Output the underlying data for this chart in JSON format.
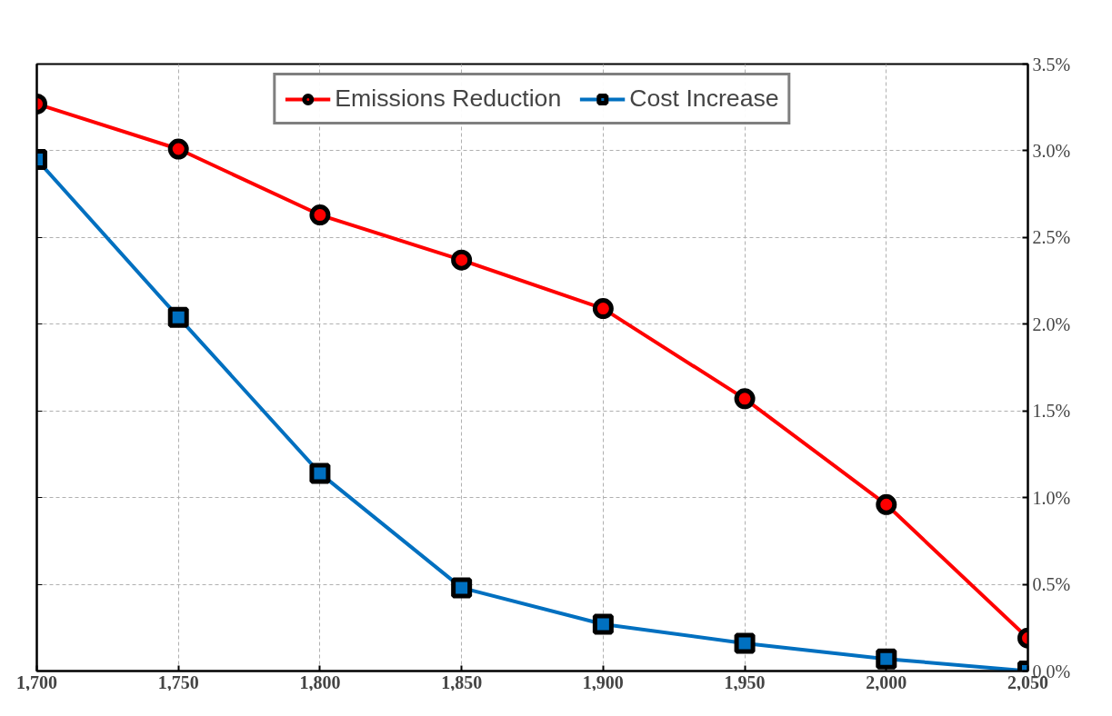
{
  "chart_data": {
    "type": "line",
    "x": [
      1700,
      1750,
      1800,
      1850,
      1900,
      1950,
      2000,
      2050
    ],
    "series": [
      {
        "name": "Emissions Reduction",
        "color": "#ff0000",
        "marker": "circle",
        "values": [
          3.27,
          3.01,
          2.63,
          2.37,
          2.09,
          1.57,
          0.96,
          0.19
        ]
      },
      {
        "name": "Cost Increase",
        "color": "#0070c0",
        "marker": "square",
        "values": [
          2.95,
          2.04,
          1.14,
          0.48,
          0.27,
          0.16,
          0.07,
          0.0
        ]
      }
    ],
    "xlim": [
      1700,
      2050
    ],
    "xticks": [
      {
        "value": 1700,
        "label": "1,700"
      },
      {
        "value": 1750,
        "label": "1,750"
      },
      {
        "value": 1800,
        "label": "1,800"
      },
      {
        "value": 1850,
        "label": "1,850"
      },
      {
        "value": 1900,
        "label": "1,900"
      },
      {
        "value": 1950,
        "label": "1,950"
      },
      {
        "value": 2000,
        "label": "2,000"
      },
      {
        "value": 2050,
        "label": "2,050"
      }
    ],
    "ylim": [
      0,
      3.5
    ],
    "yticks": [
      {
        "value": 0,
        "label": "0.0%"
      },
      {
        "value": 0.5,
        "label": "0.5%"
      },
      {
        "value": 1,
        "label": "1.0%"
      },
      {
        "value": 1.5,
        "label": "1.5%"
      },
      {
        "value": 2,
        "label": "2.0%"
      },
      {
        "value": 2.5,
        "label": "2.5%"
      },
      {
        "value": 3,
        "label": "3.0%"
      },
      {
        "value": 3.5,
        "label": "3.5%"
      }
    ],
    "grid": true,
    "legend": "top",
    "line_style": "solid"
  }
}
